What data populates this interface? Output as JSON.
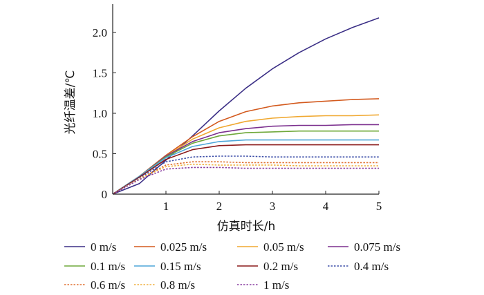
{
  "chart_data": {
    "type": "line",
    "title": "",
    "xlabel": "仿真时长/h",
    "ylabel": "光纤温差/℃",
    "xlim": [
      0,
      5
    ],
    "ylim": [
      0,
      2.35
    ],
    "xticks": [
      "1",
      "2",
      "3",
      "4",
      "5"
    ],
    "yticks": [
      "0",
      "0.5",
      "1.0",
      "1.5",
      "2.0"
    ],
    "grid": false,
    "legend_position": "bottom",
    "x": [
      0,
      0.5,
      1,
      1.5,
      2,
      2.5,
      3,
      3.5,
      4,
      4.5,
      5
    ],
    "series": [
      {
        "name": "0 m/s",
        "color": "#3b2f86",
        "dashed": false,
        "values": [
          0,
          0.13,
          0.42,
          0.72,
          1.03,
          1.31,
          1.55,
          1.75,
          1.92,
          2.06,
          2.18
        ]
      },
      {
        "name": "0.025 m/s",
        "color": "#d35a1e",
        "dashed": false,
        "values": [
          0,
          0.22,
          0.48,
          0.71,
          0.9,
          1.02,
          1.09,
          1.13,
          1.15,
          1.17,
          1.18
        ]
      },
      {
        "name": "0.05 m/s",
        "color": "#f0a830",
        "dashed": false,
        "values": [
          0,
          0.22,
          0.47,
          0.68,
          0.82,
          0.9,
          0.94,
          0.96,
          0.97,
          0.97,
          0.98
        ]
      },
      {
        "name": "0.075 m/s",
        "color": "#7b2f8e",
        "dashed": false,
        "values": [
          0,
          0.22,
          0.47,
          0.65,
          0.76,
          0.81,
          0.84,
          0.85,
          0.85,
          0.86,
          0.86
        ]
      },
      {
        "name": "0.1 m/s",
        "color": "#6fa83a",
        "dashed": false,
        "values": [
          0,
          0.22,
          0.46,
          0.63,
          0.72,
          0.76,
          0.77,
          0.78,
          0.78,
          0.78,
          0.78
        ]
      },
      {
        "name": "0.15 m/s",
        "color": "#4da6d9",
        "dashed": false,
        "values": [
          0,
          0.22,
          0.45,
          0.59,
          0.65,
          0.67,
          0.67,
          0.67,
          0.67,
          0.67,
          0.67
        ]
      },
      {
        "name": "0.2 m/s",
        "color": "#8b1a1a",
        "dashed": false,
        "values": [
          0,
          0.21,
          0.43,
          0.55,
          0.6,
          0.61,
          0.61,
          0.61,
          0.61,
          0.61,
          0.61
        ]
      },
      {
        "name": "0.4 m/s",
        "color": "#3d4fa8",
        "dashed": true,
        "values": [
          0,
          0.2,
          0.4,
          0.46,
          0.47,
          0.47,
          0.46,
          0.46,
          0.46,
          0.46,
          0.46
        ]
      },
      {
        "name": "0.6 m/s",
        "color": "#e07030",
        "dashed": true,
        "values": [
          0,
          0.19,
          0.36,
          0.4,
          0.4,
          0.39,
          0.39,
          0.39,
          0.39,
          0.39,
          0.39
        ]
      },
      {
        "name": "0.8 m/s",
        "color": "#f0b040",
        "dashed": true,
        "values": [
          0,
          0.19,
          0.34,
          0.37,
          0.36,
          0.36,
          0.36,
          0.35,
          0.35,
          0.35,
          0.35
        ]
      },
      {
        "name": "1 m/s",
        "color": "#8a3fa0",
        "dashed": true,
        "values": [
          0,
          0.18,
          0.31,
          0.33,
          0.33,
          0.32,
          0.32,
          0.32,
          0.32,
          0.32,
          0.32
        ]
      }
    ]
  }
}
